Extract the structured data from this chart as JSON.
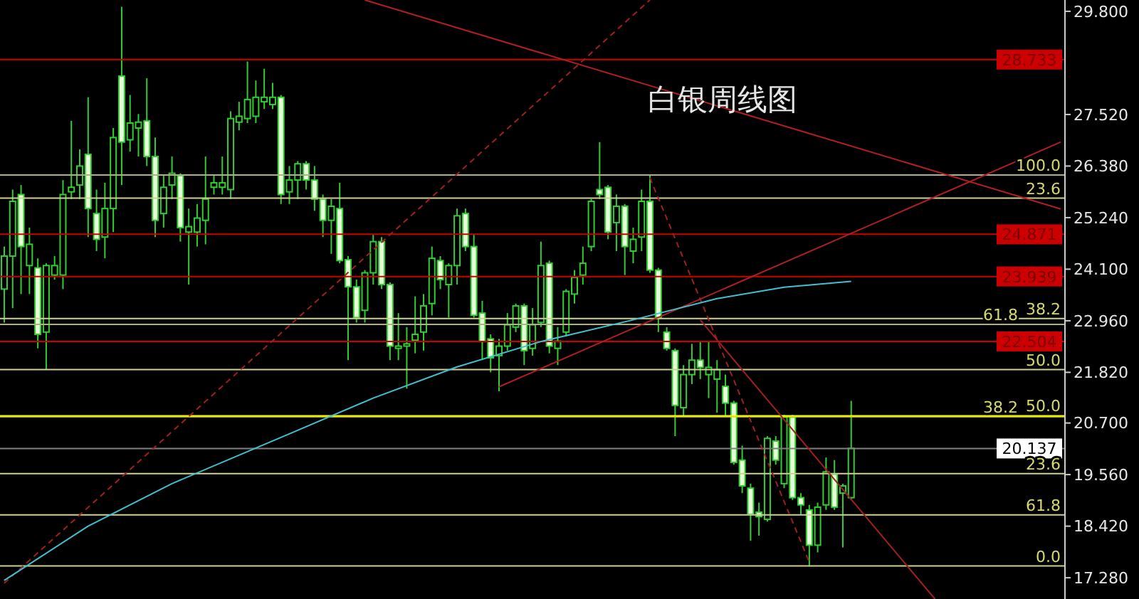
{
  "chart_data": {
    "type": "candlestick",
    "title": "白银周线图",
    "categories": [
      null,
      null,
      null,
      null,
      null,
      null,
      null,
      null,
      null,
      null,
      null,
      null,
      null,
      null,
      null,
      null,
      null,
      null,
      null,
      null,
      null,
      null,
      null,
      null,
      null,
      null,
      null,
      null,
      null,
      null,
      null,
      null,
      null,
      null,
      null,
      null,
      null,
      null,
      null,
      null,
      null,
      null,
      null,
      null,
      null,
      null,
      null,
      null,
      null,
      null,
      null,
      null,
      null,
      null,
      null,
      null,
      null,
      null,
      null,
      null,
      null,
      null,
      null,
      null,
      null,
      null,
      null,
      null,
      null,
      null,
      null,
      null,
      null,
      null,
      null,
      null,
      null,
      null,
      null,
      null,
      null,
      null,
      null,
      null,
      null,
      null,
      null,
      null,
      null,
      null,
      null,
      null,
      null,
      null,
      null,
      null,
      null,
      null,
      null,
      null,
      null,
      null,
      null,
      null,
      null,
      null,
      null,
      null,
      null,
      null,
      null,
      null,
      null,
      null,
      null,
      null,
      null,
      null,
      null,
      null,
      null,
      null,
      null,
      null,
      null,
      null,
      null
    ],
    "ohlc": [
      [
        23.66,
        24.6,
        22.92,
        24.39
      ],
      [
        24.39,
        25.86,
        23.24,
        25.6
      ],
      [
        25.75,
        25.96,
        23.55,
        24.6
      ],
      [
        24.18,
        25.02,
        23.55,
        24.65
      ],
      [
        24.13,
        24.34,
        22.35,
        22.66
      ],
      [
        22.71,
        24.23,
        21.88,
        24.18
      ],
      [
        23.97,
        24.39,
        23.87,
        24.18
      ],
      [
        23.97,
        26.07,
        23.66,
        25.75
      ],
      [
        25.81,
        27.38,
        25.65,
        25.91
      ],
      [
        25.96,
        26.75,
        25.65,
        26.38
      ],
      [
        26.64,
        27.9,
        24.81,
        25.44
      ],
      [
        25.33,
        25.86,
        24.5,
        24.76
      ],
      [
        24.81,
        26.01,
        24.34,
        25.44
      ],
      [
        25.44,
        27.22,
        24.92,
        27.01
      ],
      [
        28.37,
        29.9,
        25.96,
        26.91
      ],
      [
        26.96,
        27.95,
        26.7,
        27.33
      ],
      [
        27.22,
        27.53,
        26.59,
        27.35
      ],
      [
        27.38,
        28.32,
        26.38,
        26.59
      ],
      [
        26.59,
        27.01,
        24.81,
        25.18
      ],
      [
        25.33,
        26.17,
        25.02,
        25.91
      ],
      [
        25.96,
        26.59,
        25.65,
        26.22
      ],
      [
        26.17,
        26.22,
        24.71,
        25.02
      ],
      [
        24.92,
        25.44,
        23.76,
        25.04
      ],
      [
        24.92,
        25.54,
        24.6,
        25.23
      ],
      [
        25.18,
        26.59,
        24.65,
        25.65
      ],
      [
        25.91,
        26.17,
        25.75,
        26.01
      ],
      [
        25.91,
        26.59,
        25.75,
        26.01
      ],
      [
        25.86,
        27.59,
        25.65,
        27.43
      ],
      [
        27.35,
        27.8,
        27.17,
        27.48
      ],
      [
        27.43,
        28.69,
        27.33,
        27.85
      ],
      [
        27.48,
        28.27,
        27.33,
        27.9
      ],
      [
        27.8,
        28.53,
        27.64,
        27.9
      ],
      [
        27.74,
        28.22,
        27.64,
        27.9
      ],
      [
        27.9,
        27.95,
        25.54,
        25.75
      ],
      [
        25.81,
        26.38,
        25.54,
        26.07
      ],
      [
        26.07,
        26.49,
        25.65,
        26.43
      ],
      [
        26.43,
        26.49,
        25.86,
        26.07
      ],
      [
        26.07,
        26.38,
        25.39,
        25.65
      ],
      [
        25.65,
        25.75,
        24.81,
        25.18
      ],
      [
        25.18,
        25.65,
        24.44,
        25.49
      ],
      [
        25.44,
        26.01,
        24.23,
        24.29
      ],
      [
        24.31,
        24.39,
        22.09,
        23.71
      ],
      [
        23.71,
        23.87,
        22.92,
        23.03
      ],
      [
        23.19,
        24.08,
        22.92,
        24.02
      ],
      [
        24.02,
        24.86,
        23.76,
        24.71
      ],
      [
        24.71,
        24.81,
        23.66,
        23.76
      ],
      [
        23.76,
        23.81,
        22.09,
        22.4
      ],
      [
        22.35,
        23.13,
        22.09,
        22.4
      ],
      [
        22.4,
        22.82,
        21.46,
        22.45
      ],
      [
        22.53,
        23.5,
        22.24,
        22.66
      ],
      [
        22.71,
        23.55,
        22.3,
        23.29
      ],
      [
        23.34,
        24.6,
        23.08,
        24.34
      ],
      [
        24.29,
        24.39,
        23.66,
        23.87
      ],
      [
        23.76,
        24.23,
        23.03,
        24.18
      ],
      [
        24.18,
        25.44,
        23.76,
        25.28
      ],
      [
        25.33,
        25.44,
        24.5,
        24.6
      ],
      [
        24.6,
        24.86,
        23.03,
        23.08
      ],
      [
        23.13,
        23.4,
        22.09,
        22.5
      ],
      [
        22.56,
        22.66,
        21.82,
        22.14
      ],
      [
        22.19,
        22.56,
        21.4,
        22.4
      ],
      [
        22.4,
        23.13,
        22.3,
        22.87
      ],
      [
        22.82,
        23.34,
        22.71,
        23.29
      ],
      [
        23.29,
        23.34,
        21.98,
        22.3
      ],
      [
        22.35,
        23.24,
        22.19,
        22.87
      ],
      [
        22.92,
        24.71,
        22.82,
        24.18
      ],
      [
        24.23,
        24.29,
        22.24,
        22.4
      ],
      [
        22.35,
        22.82,
        21.98,
        22.51
      ],
      [
        22.71,
        23.66,
        22.61,
        23.61
      ],
      [
        23.55,
        24.08,
        23.34,
        23.92
      ],
      [
        23.97,
        24.6,
        23.76,
        24.23
      ],
      [
        24.6,
        25.65,
        24.5,
        25.6
      ],
      [
        25.86,
        26.91,
        25.65,
        25.75
      ],
      [
        25.91,
        25.96,
        24.76,
        24.92
      ],
      [
        25.13,
        25.75,
        24.5,
        25.49
      ],
      [
        25.49,
        25.54,
        23.97,
        24.6
      ],
      [
        24.5,
        25.02,
        24.23,
        24.76
      ],
      [
        24.81,
        25.86,
        24.5,
        25.6
      ],
      [
        25.6,
        26.17,
        24.02,
        24.08
      ],
      [
        24.08,
        24.13,
        22.71,
        23.03
      ],
      [
        22.71,
        22.82,
        22.3,
        22.35
      ],
      [
        22.3,
        22.35,
        20.41,
        21.09
      ],
      [
        21.04,
        21.98,
        20.83,
        21.77
      ],
      [
        21.77,
        22.45,
        21.56,
        22.09
      ],
      [
        22.09,
        22.51,
        21.67,
        21.93
      ],
      [
        21.77,
        22.51,
        21.25,
        21.93
      ],
      [
        21.67,
        22.09,
        20.93,
        21.88
      ],
      [
        21.51,
        21.77,
        20.83,
        21.14
      ],
      [
        21.14,
        21.19,
        19.78,
        19.83
      ],
      [
        19.88,
        20.2,
        19.15,
        19.31
      ],
      [
        19.26,
        19.36,
        18.1,
        18.68
      ],
      [
        18.73,
        18.94,
        18.21,
        18.63
      ],
      [
        18.57,
        20.41,
        18.52,
        20.36
      ],
      [
        20.3,
        20.41,
        19.78,
        19.88
      ],
      [
        19.36,
        20.88,
        19.26,
        20.83
      ],
      [
        20.83,
        20.88,
        19.0,
        19.05
      ],
      [
        19.05,
        19.15,
        18.68,
        18.89
      ],
      [
        18.78,
        18.89,
        17.53,
        18.0
      ],
      [
        18.0,
        18.94,
        17.84,
        18.84
      ],
      [
        18.89,
        19.94,
        18.78,
        19.62
      ],
      [
        19.57,
        19.88,
        18.78,
        18.84
      ],
      [
        19.15,
        19.36,
        17.95,
        19.31
      ],
      [
        19.05,
        21.19,
        19.0,
        20.14
      ],
      null,
      null,
      null,
      null,
      null,
      null,
      null,
      null,
      null,
      null,
      null,
      null,
      null,
      null,
      null,
      null,
      null,
      null,
      null,
      null,
      null,
      null,
      null,
      null,
      null
    ],
    "ylim": [
      16.81,
      30.05
    ],
    "yticks": [
      {
        "value": 29.8,
        "label": "29.800"
      },
      {
        "value": 27.52,
        "label": "27.520"
      },
      {
        "value": 26.38,
        "label": "26.380"
      },
      {
        "value": 25.24,
        "label": "25.240"
      },
      {
        "value": 24.1,
        "label": "24.100"
      },
      {
        "value": 22.96,
        "label": "22.960"
      },
      {
        "value": 21.82,
        "label": "21.820"
      },
      {
        "value": 20.7,
        "label": "20.700"
      },
      {
        "value": 19.56,
        "label": "19.560"
      },
      {
        "value": 18.42,
        "label": "18.420"
      },
      {
        "value": 17.28,
        "label": "17.280"
      }
    ],
    "tick_labels": "y",
    "series": [
      {
        "type": "line",
        "color": "#b02020",
        "line_style": "solid",
        "values": [
          null,
          null,
          null,
          null,
          null,
          null,
          null,
          null,
          null,
          null,
          null,
          null,
          null,
          null,
          null,
          null,
          null,
          null,
          null,
          null,
          null,
          null,
          null,
          null,
          null,
          null,
          null,
          null,
          null,
          null,
          null,
          null,
          null,
          null,
          null,
          null,
          null,
          null,
          null,
          null,
          null,
          null,
          null,
          30.05,
          null,
          null,
          null,
          null,
          null,
          null,
          null,
          null,
          null,
          null,
          null,
          null,
          null,
          null,
          null,
          null,
          null,
          null,
          null,
          null,
          null,
          null,
          null,
          null,
          null,
          null,
          null,
          null,
          null,
          null,
          null,
          null,
          null,
          null,
          null,
          null,
          null,
          null,
          null,
          null,
          null,
          null,
          null,
          null,
          null,
          null,
          null,
          null,
          null,
          null,
          null,
          null,
          null,
          null,
          null,
          null,
          null,
          null,
          null,
          null,
          null,
          null,
          null,
          null,
          null,
          null,
          null,
          null,
          null,
          null,
          null,
          null,
          null,
          null,
          null,
          null,
          null,
          null,
          null,
          null,
          null,
          null,
          25.43
        ]
      },
      {
        "type": "line",
        "color": "#b02020",
        "line_style": "solid",
        "values": [
          null,
          null,
          null,
          null,
          null,
          null,
          null,
          null,
          null,
          null,
          null,
          null,
          null,
          null,
          null,
          null,
          null,
          null,
          null,
          null,
          null,
          null,
          null,
          null,
          null,
          null,
          null,
          null,
          null,
          null,
          null,
          null,
          null,
          null,
          null,
          null,
          null,
          null,
          null,
          null,
          null,
          null,
          null,
          null,
          null,
          null,
          null,
          null,
          null,
          null,
          null,
          null,
          null,
          null,
          null,
          null,
          null,
          null,
          null,
          21.5,
          null,
          null,
          null,
          null,
          null,
          null,
          null,
          null,
          null,
          null,
          null,
          null,
          null,
          null,
          null,
          null,
          null,
          null,
          null,
          null,
          null,
          null,
          null,
          null,
          null,
          null,
          null,
          null,
          null,
          null,
          null,
          null,
          null,
          null,
          null,
          null,
          null,
          null,
          null,
          null,
          null,
          null,
          null,
          null,
          null,
          null,
          null,
          null,
          null,
          null,
          null,
          null,
          null,
          null,
          null,
          null,
          null,
          null,
          null,
          null,
          null,
          null,
          null,
          null,
          null,
          null,
          26.91
        ]
      },
      {
        "type": "line",
        "color": "#a02020",
        "line_style": "dashed",
        "values": [
          17.16,
          null,
          null,
          null,
          null,
          null,
          null,
          null,
          null,
          null,
          null,
          null,
          null,
          null,
          null,
          null,
          null,
          null,
          null,
          null,
          null,
          null,
          null,
          null,
          null,
          null,
          null,
          null,
          null,
          null,
          null,
          null,
          null,
          null,
          null,
          null,
          null,
          null,
          null,
          null,
          null,
          null,
          null,
          null,
          null,
          null,
          null,
          null,
          null,
          null,
          null,
          null,
          null,
          null,
          null,
          null,
          null,
          null,
          null,
          null,
          null,
          null,
          null,
          null,
          null,
          null,
          null,
          null,
          null,
          null,
          null,
          null,
          null,
          null,
          null,
          null,
          null,
          30.05,
          null,
          null,
          null,
          null,
          null,
          null,
          null,
          null,
          null,
          null,
          null,
          null,
          null,
          null,
          null,
          null,
          null,
          null,
          null,
          null,
          null,
          null,
          null,
          null,
          null,
          null,
          null,
          null,
          null,
          null,
          null,
          null,
          null,
          null,
          null,
          null,
          null,
          null,
          null,
          null,
          null,
          null,
          null,
          null,
          null,
          null,
          null,
          null,
          null
        ]
      },
      {
        "type": "line",
        "color": "#a02020",
        "line_style": "solid",
        "values": [
          null,
          null,
          null,
          null,
          null,
          null,
          null,
          null,
          null,
          null,
          null,
          null,
          null,
          null,
          null,
          null,
          null,
          null,
          null,
          null,
          null,
          null,
          null,
          null,
          null,
          null,
          null,
          null,
          null,
          null,
          null,
          null,
          null,
          null,
          null,
          null,
          null,
          null,
          null,
          null,
          null,
          null,
          null,
          null,
          null,
          null,
          null,
          null,
          null,
          null,
          null,
          null,
          null,
          null,
          null,
          null,
          null,
          null,
          null,
          null,
          null,
          null,
          null,
          null,
          null,
          null,
          null,
          null,
          null,
          null,
          null,
          null,
          null,
          null,
          null,
          null,
          null,
          null,
          null,
          null,
          null,
          null,
          null,
          22.98,
          null,
          null,
          null,
          null,
          null,
          null,
          null,
          null,
          null,
          null,
          null,
          null,
          null,
          null,
          null,
          null,
          null,
          null,
          null,
          null,
          null,
          null,
          null,
          null,
          null,
          null,
          null,
          16.81,
          null,
          null,
          null,
          null,
          null,
          null,
          null,
          null,
          null,
          null,
          null,
          null,
          null,
          null,
          null
        ]
      },
      {
        "type": "line",
        "color": "#a02020",
        "line_style": "dashed",
        "values": [
          null,
          null,
          null,
          null,
          null,
          null,
          null,
          null,
          null,
          null,
          null,
          null,
          null,
          null,
          null,
          null,
          null,
          null,
          null,
          null,
          null,
          null,
          null,
          null,
          null,
          null,
          null,
          null,
          null,
          null,
          null,
          null,
          null,
          null,
          null,
          null,
          null,
          null,
          null,
          null,
          null,
          null,
          null,
          null,
          null,
          null,
          null,
          null,
          null,
          null,
          null,
          null,
          null,
          null,
          null,
          null,
          null,
          null,
          null,
          null,
          null,
          null,
          null,
          null,
          null,
          null,
          null,
          null,
          null,
          null,
          null,
          null,
          null,
          null,
          null,
          null,
          null,
          26.12,
          null,
          null,
          null,
          null,
          null,
          null,
          null,
          null,
          null,
          null,
          null,
          null,
          null,
          null,
          null,
          null,
          null,
          null,
          17.63,
          null,
          null,
          null,
          null,
          null,
          null,
          null,
          null,
          null,
          null,
          null,
          null,
          null,
          null,
          null,
          null,
          null,
          null,
          null,
          null,
          null,
          null,
          null,
          null,
          null,
          null,
          null,
          null,
          null,
          null
        ]
      },
      {
        "type": "line",
        "color": "#40c0d0",
        "line_style": "solid",
        "values": [
          17.22,
          null,
          null,
          null,
          null,
          null,
          null,
          null,
          null,
          null,
          18.42,
          null,
          null,
          null,
          null,
          null,
          null,
          null,
          null,
          null,
          19.36,
          null,
          null,
          null,
          null,
          null,
          null,
          null,
          null,
          null,
          null,
          null,
          null,
          null,
          20.46,
          null,
          null,
          null,
          null,
          null,
          null,
          null,
          null,
          null,
          21.25,
          null,
          null,
          null,
          null,
          null,
          null,
          null,
          null,
          null,
          21.94,
          null,
          null,
          null,
          null,
          null,
          null,
          null,
          null,
          null,
          22.5,
          null,
          null,
          null,
          null,
          null,
          null,
          null,
          null,
          null,
          null,
          22.98,
          null,
          null,
          null,
          null,
          null,
          null,
          null,
          null,
          null,
          23.45,
          null,
          null,
          null,
          null,
          null,
          null,
          null,
          23.7,
          null,
          null,
          null,
          null,
          null,
          null,
          null,
          23.83,
          null,
          null,
          null,
          null,
          null,
          null,
          null,
          null,
          null,
          null,
          null,
          null,
          null,
          null,
          null,
          null,
          null,
          null,
          null,
          null,
          null,
          null,
          null,
          null,
          null
        ]
      }
    ],
    "ref_lines": [
      {
        "axis": "y",
        "value": 28.733,
        "label": "28.733",
        "color": "#cc0000"
      },
      {
        "axis": "y",
        "value": 24.871,
        "label": "24.871",
        "color": "#cc0000"
      },
      {
        "axis": "y",
        "value": 23.939,
        "label": "23.939",
        "color": "#cc0000"
      },
      {
        "axis": "y",
        "value": 22.504,
        "label": "22.504",
        "color": "#cc0000"
      },
      {
        "axis": "y",
        "value": 20.137,
        "label": "20.137",
        "color": "#808080"
      },
      {
        "axis": "y",
        "value": 26.18,
        "color": "#b0b080"
      },
      {
        "axis": "y",
        "value": 25.67,
        "color": "#d0d090"
      },
      {
        "axis": "y",
        "value": 23.01,
        "color": "#d0d090"
      },
      {
        "axis": "y",
        "value": 22.88,
        "color": "#b0b080"
      },
      {
        "axis": "y",
        "value": 21.88,
        "color": "#d0d090"
      },
      {
        "axis": "y",
        "value": 20.86,
        "color": "#ffff00"
      },
      {
        "axis": "y",
        "value": 20.84,
        "color": "#e0e000"
      },
      {
        "axis": "y",
        "value": 19.58,
        "color": "#d0d090"
      },
      {
        "axis": "y",
        "value": 18.67,
        "color": "#d0d090"
      },
      {
        "axis": "y",
        "value": 17.54,
        "color": "#d0d090"
      }
    ],
    "annotations": [
      {
        "text": "100.0",
        "y": 26.18
      },
      {
        "text": "23.6",
        "y": 25.67
      },
      {
        "text": "38.2",
        "y": 23.01
      },
      {
        "text": "61.8",
        "y": 22.88
      },
      {
        "text": "50.0",
        "y": 21.88
      },
      {
        "text": "50.0",
        "y": 20.86
      },
      {
        "text": "38.2",
        "y": 20.84
      },
      {
        "text": "23.6",
        "y": 19.58
      },
      {
        "text": "61.8",
        "y": 18.67
      },
      {
        "text": "0.0",
        "y": 17.54
      }
    ]
  }
}
